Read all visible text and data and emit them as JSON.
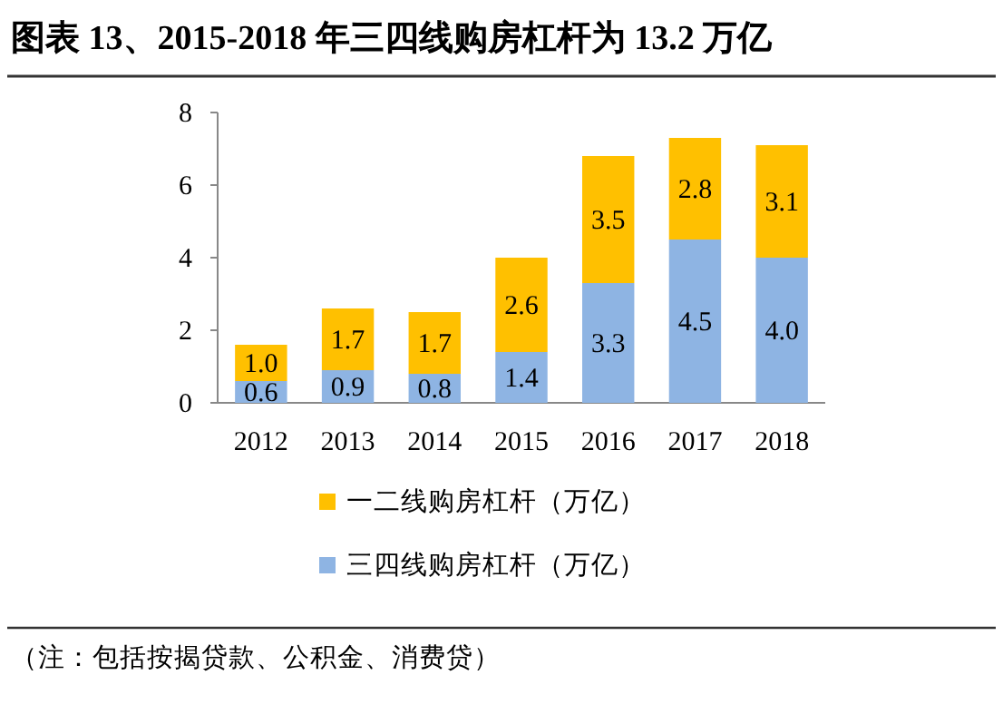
{
  "chart_data": {
    "type": "bar",
    "title": "图表 13、2015-2018 年三四线购房杠杆为 13.2 万亿",
    "categories": [
      "2012",
      "2013",
      "2014",
      "2015",
      "2016",
      "2017",
      "2018"
    ],
    "stacked": true,
    "series": [
      {
        "name": "三四线购房杠杆（万亿）",
        "color": "#8eb4e3",
        "values": [
          0.6,
          0.9,
          0.8,
          1.4,
          3.3,
          4.5,
          4.0
        ],
        "value_labels": [
          "0.6",
          "0.9",
          "0.8",
          "1.4",
          "3.3",
          "4.5",
          "4.0"
        ]
      },
      {
        "name": "一二线购房杠杆（万亿）",
        "color": "#ffc000",
        "values": [
          1.0,
          1.7,
          1.7,
          2.6,
          3.5,
          2.8,
          3.1
        ],
        "value_labels": [
          "1.0",
          "1.7",
          "1.7",
          "2.6",
          "3.5",
          "2.8",
          "3.1"
        ]
      }
    ],
    "ylim": [
      0,
      8
    ],
    "yticks": [
      0,
      2,
      4,
      6,
      8
    ],
    "grid": false,
    "legend": "bottom",
    "annotations": [
      "（注：包括按揭贷款、公积金、消费贷）"
    ]
  }
}
